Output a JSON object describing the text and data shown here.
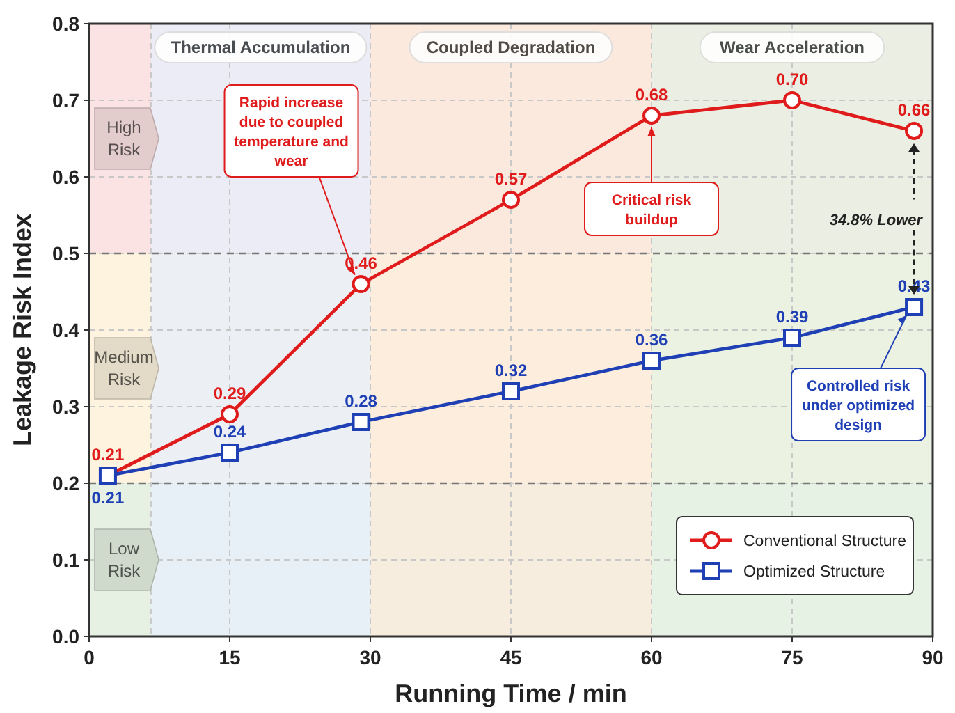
{
  "chart_data": {
    "type": "line",
    "xlabel": "Running Time / min",
    "ylabel": "Leakage Risk Index",
    "x": [
      2,
      15,
      29,
      45,
      60,
      75,
      88
    ],
    "series": [
      {
        "name": "Conventional Structure",
        "color": "#e01b1b",
        "marker": "circle",
        "values": [
          0.21,
          0.29,
          0.46,
          0.57,
          0.68,
          0.7,
          0.66
        ],
        "value_labels": [
          "0.21",
          "0.29",
          "0.46",
          "0.57",
          "0.68",
          "0.70",
          "0.66"
        ]
      },
      {
        "name": "Optimized Structure",
        "color": "#1f3fb4",
        "marker": "square",
        "values": [
          0.21,
          0.24,
          0.28,
          0.32,
          0.36,
          0.39,
          0.43
        ],
        "value_labels": [
          "0.21",
          "0.24",
          "0.28",
          "0.32",
          "0.36",
          "0.39",
          "0.43"
        ]
      }
    ],
    "xlim": [
      0,
      90
    ],
    "xticks": [
      0,
      15,
      30,
      45,
      60,
      75,
      90
    ],
    "ylim": [
      0,
      0.8
    ],
    "yticks": [
      {
        "value": 0,
        "label": "0.0"
      },
      0.1,
      0.2,
      0.3,
      0.4,
      0.5,
      0.6,
      0.7,
      0.8
    ],
    "grid": true,
    "legend": "bottom right",
    "line_style": "solid",
    "bands": [
      {
        "axis": "y",
        "from": 0.5,
        "to": 0.8,
        "label": "High Risk",
        "color": "#fbe3e3"
      },
      {
        "axis": "y",
        "from": 0.2,
        "to": 0.5,
        "label": "Medium Risk",
        "color": "#fdf3df"
      },
      {
        "axis": "y",
        "from": 0,
        "to": 0.2,
        "label": "Low Risk",
        "color": "#e6f1e3"
      },
      {
        "axis": "x",
        "from": 6.6,
        "to": 30,
        "label": "Thermal Accumulation",
        "color": "#e6effc"
      },
      {
        "axis": "x",
        "from": 30,
        "to": 60,
        "label": "Coupled Degradation",
        "color": "#fcebdc"
      },
      {
        "axis": "x",
        "from": 60,
        "to": 90,
        "label": "Wear Acceleration",
        "color": "#e6f1e3"
      }
    ],
    "annotations": [
      {
        "text": "Rapid increase due to coupled temperature and wear",
        "x": 29,
        "y": 0.46
      },
      {
        "text": "Critical risk buildup",
        "x": 60,
        "y": 0.68
      },
      {
        "text": "Controlled risk under optimized design",
        "x": 88,
        "y": 0.43
      },
      "34.8% Lower"
    ]
  }
}
